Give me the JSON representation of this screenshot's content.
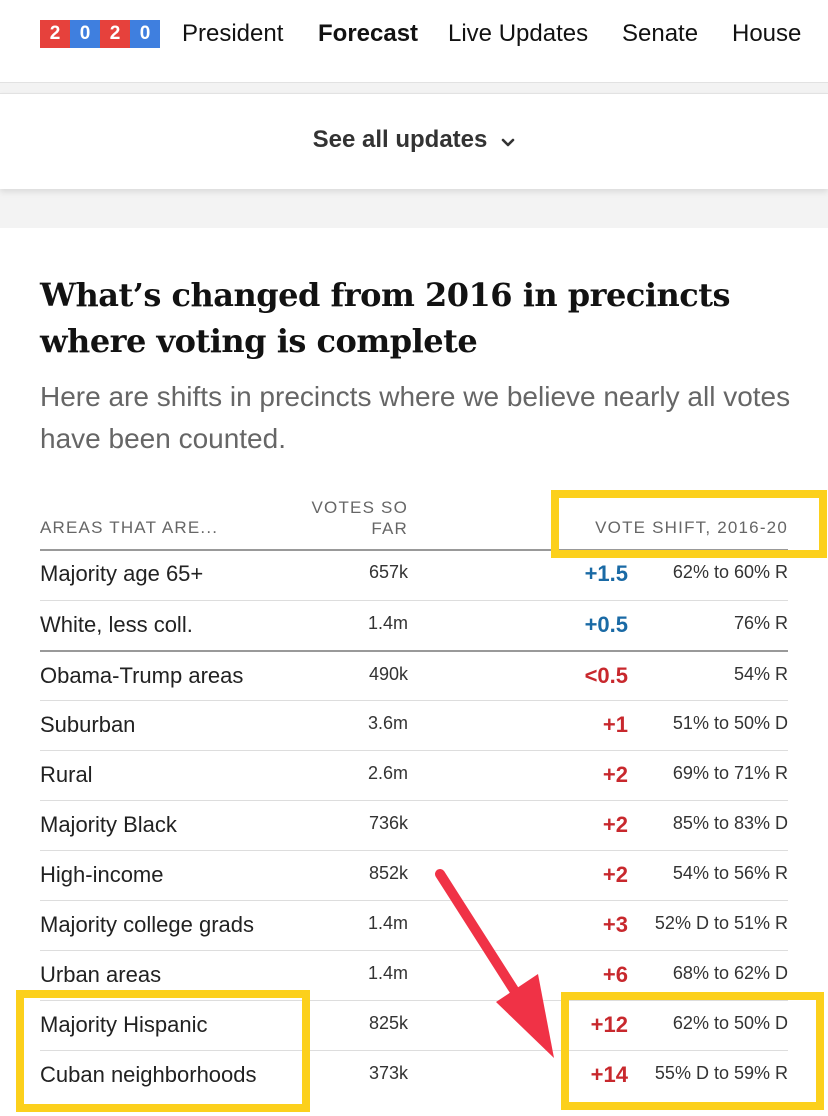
{
  "nav": {
    "logo_digits": [
      "2",
      "0",
      "2",
      "0"
    ],
    "logo_colors": [
      "#e6413c",
      "#3f7fdf",
      "#e6413c",
      "#3f7fdf"
    ],
    "items": [
      {
        "label": "President",
        "active": false
      },
      {
        "label": "Forecast",
        "active": true
      },
      {
        "label": "Live Updates",
        "active": false
      },
      {
        "label": "Senate",
        "active": false
      },
      {
        "label": "House",
        "active": false
      }
    ]
  },
  "updates": {
    "see_all_label": "See all updates",
    "icon": "chevron-down-icon"
  },
  "article": {
    "headline": "What’s changed from 2016 in precincts where voting is complete",
    "dek": "Here are shifts in precincts where we believe nearly all votes have been counted."
  },
  "table": {
    "headers": {
      "area": "AREAS THAT ARE...",
      "votes_line1": "VOTES SO",
      "votes_line2": "FAR",
      "shift": "VOTE SHIFT, 2016-20"
    },
    "rows": [
      {
        "area": "Majority age 65+",
        "votes": "657k",
        "shift": "+1.5",
        "party": "D",
        "result": "62% to 60% R"
      },
      {
        "area": "White, less coll.",
        "votes": "1.4m",
        "shift": "+0.5",
        "party": "D",
        "result": "76% R"
      },
      {
        "area": "Obama-Trump areas",
        "votes": "490k",
        "shift": "<0.5",
        "party": "R",
        "result": "54% R"
      },
      {
        "area": "Suburban",
        "votes": "3.6m",
        "shift": "+1",
        "party": "R",
        "result": "51% to 50% D"
      },
      {
        "area": "Rural",
        "votes": "2.6m",
        "shift": "+2",
        "party": "R",
        "result": "69% to 71% R"
      },
      {
        "area": "Majority Black",
        "votes": "736k",
        "shift": "+2",
        "party": "R",
        "result": "85% to 83% D"
      },
      {
        "area": "High-income",
        "votes": "852k",
        "shift": "+2",
        "party": "R",
        "result": "54% to 56% R"
      },
      {
        "area": "Majority college grads",
        "votes": "1.4m",
        "shift": "+3",
        "party": "R",
        "result": "52% D to 51% R"
      },
      {
        "area": "Urban areas",
        "votes": "1.4m",
        "shift": "+6",
        "party": "R",
        "result": "68% to 62% D"
      },
      {
        "area": "Majority Hispanic",
        "votes": "825k",
        "shift": "+12",
        "party": "R",
        "result": "62% to 50% D"
      },
      {
        "area": "Cuban neighborhoods",
        "votes": "373k",
        "shift": "+14",
        "party": "R",
        "result": "55% D to 59% R"
      }
    ]
  },
  "colors": {
    "dem_shift": "#1a6aa5",
    "rep_shift": "#c8282d",
    "highlight": "#fcd01c",
    "arrow": "#f03246"
  }
}
